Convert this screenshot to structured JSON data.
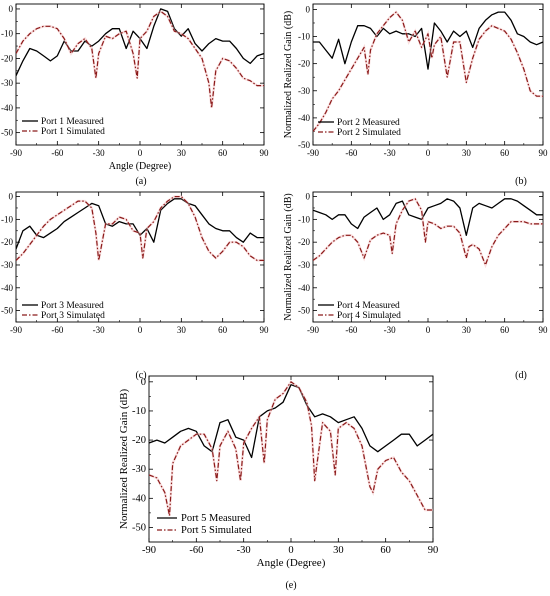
{
  "chart_data": [
    {
      "type": "line",
      "panel_label": "(a)",
      "xlabel": "Angle (Degree)",
      "ylabel": "Normalized Realized Gain (dB)",
      "xlim": [
        -90,
        90
      ],
      "ylim": [
        -55,
        2
      ],
      "xticks": [
        "-90",
        "-60",
        "-30",
        "0",
        "30",
        "60",
        "90"
      ],
      "yticks": [
        "0",
        "-10",
        "-20",
        "-30",
        "-40",
        "-50"
      ],
      "legend_position": "bottom-left",
      "series": [
        {
          "name": "Port 1 Measured",
          "color": "#000000",
          "style": "solid",
          "x": [
            -90,
            -85,
            -80,
            -75,
            -70,
            -65,
            -60,
            -55,
            -50,
            -45,
            -40,
            -35,
            -30,
            -25,
            -20,
            -15,
            -10,
            -5,
            0,
            5,
            10,
            15,
            20,
            25,
            30,
            35,
            40,
            45,
            50,
            55,
            60,
            65,
            70,
            75,
            80,
            85,
            90
          ],
          "y": [
            -27,
            -21,
            -16,
            -17,
            -19,
            -21,
            -19,
            -13,
            -17,
            -17,
            -13,
            -15,
            -13,
            -10,
            -8,
            -8,
            -16,
            -9,
            -12,
            -16,
            -7,
            0,
            -1,
            -8,
            -11,
            -8,
            -14,
            -17,
            -14,
            -12,
            -13,
            -13,
            -16,
            -20,
            -22,
            -19,
            -18
          ]
        },
        {
          "name": "Port 1 Simulated",
          "color": "#8b1a1a",
          "style": "dashdot",
          "x": [
            -90,
            -85,
            -80,
            -75,
            -70,
            -65,
            -60,
            -55,
            -50,
            -45,
            -40,
            -35,
            -32,
            -30,
            -25,
            -20,
            -15,
            -10,
            -5,
            -2,
            0,
            5,
            10,
            15,
            20,
            25,
            30,
            35,
            40,
            45,
            50,
            52,
            55,
            60,
            65,
            70,
            75,
            80,
            85,
            90
          ],
          "y": [
            -18,
            -13,
            -10,
            -8,
            -7,
            -7,
            -8,
            -12,
            -18,
            -14,
            -12,
            -16,
            -28,
            -18,
            -11,
            -12,
            -10,
            -9,
            -18,
            -28,
            -12,
            -9,
            -3,
            -1,
            -3,
            -9,
            -10,
            -12,
            -16,
            -20,
            -30,
            -40,
            -25,
            -20,
            -21,
            -24,
            -28,
            -29,
            -31,
            -31
          ]
        }
      ]
    },
    {
      "type": "line",
      "panel_label": "(b)",
      "xlabel": "",
      "ylabel": "Normalized Realized Gain (dB)",
      "xlim": [
        -90,
        90
      ],
      "ylim": [
        -50,
        2
      ],
      "xticks": [
        "-90",
        "-60",
        "-30",
        "0",
        "30",
        "60",
        "90"
      ],
      "yticks": [
        "0",
        "-10",
        "-20",
        "-30",
        "-40",
        "-50"
      ],
      "legend_position": "bottom-left",
      "series": [
        {
          "name": "Port 2 Measured",
          "color": "#000000",
          "style": "solid",
          "x": [
            -90,
            -85,
            -80,
            -75,
            -70,
            -65,
            -60,
            -55,
            -50,
            -45,
            -40,
            -35,
            -30,
            -25,
            -20,
            -15,
            -10,
            -5,
            0,
            5,
            10,
            15,
            20,
            25,
            30,
            35,
            40,
            45,
            50,
            55,
            60,
            65,
            70,
            75,
            80,
            85,
            90
          ],
          "y": [
            -12,
            -12,
            -15,
            -18,
            -11,
            -20,
            -12,
            -6,
            -6,
            -7,
            -10,
            -7,
            -9,
            -8,
            -9,
            -9,
            -10,
            -7,
            -22,
            -5,
            -8,
            -12,
            -8,
            -10,
            -8,
            -14,
            -7,
            -4,
            -2,
            -1,
            -1,
            -4,
            -9,
            -10,
            -12,
            -13,
            -12
          ]
        },
        {
          "name": "Port 2 Simulated",
          "color": "#8b1a1a",
          "style": "dashdot",
          "x": [
            -90,
            -85,
            -80,
            -75,
            -70,
            -65,
            -60,
            -55,
            -50,
            -47,
            -45,
            -40,
            -35,
            -30,
            -25,
            -20,
            -15,
            -10,
            -5,
            0,
            3,
            5,
            10,
            15,
            20,
            25,
            30,
            35,
            40,
            45,
            50,
            55,
            60,
            65,
            70,
            75,
            80,
            85,
            90
          ],
          "y": [
            -45,
            -42,
            -38,
            -33,
            -30,
            -26,
            -22,
            -18,
            -14,
            -24,
            -15,
            -9,
            -6,
            -3,
            -1,
            -4,
            -12,
            -8,
            -14,
            -9,
            -18,
            -13,
            -10,
            -25,
            -12,
            -12,
            -27,
            -18,
            -11,
            -8,
            -6,
            -7,
            -8,
            -11,
            -16,
            -22,
            -30,
            -32,
            -32
          ]
        }
      ]
    },
    {
      "type": "line",
      "panel_label": "(c)",
      "xlabel": "",
      "ylabel": "Normalized Realized Gain (dB)",
      "xlim": [
        -90,
        90
      ],
      "ylim": [
        -55,
        2
      ],
      "xticks": [
        "-90",
        "-60",
        "-30",
        "0",
        "30",
        "60",
        "90"
      ],
      "yticks": [
        "0",
        "-10",
        "-20",
        "-30",
        "-40",
        "-50"
      ],
      "legend_position": "bottom-left",
      "series": [
        {
          "name": "Port 3 Measured",
          "color": "#000000",
          "style": "solid",
          "x": [
            -90,
            -85,
            -80,
            -75,
            -70,
            -65,
            -60,
            -55,
            -50,
            -45,
            -40,
            -35,
            -30,
            -25,
            -20,
            -15,
            -10,
            -5,
            0,
            5,
            10,
            15,
            20,
            25,
            30,
            35,
            40,
            45,
            50,
            55,
            60,
            65,
            70,
            75,
            80,
            85,
            90
          ],
          "y": [
            -23,
            -15,
            -13,
            -17,
            -18,
            -16,
            -14,
            -11,
            -9,
            -7,
            -5,
            -3,
            -4,
            -12,
            -13,
            -11,
            -12,
            -12,
            -17,
            -14,
            -20,
            -6,
            -3,
            -1,
            -1,
            -3,
            -4,
            -8,
            -12,
            -14,
            -15,
            -15,
            -18,
            -20,
            -16,
            -18,
            -18
          ]
        },
        {
          "name": "Port 3 Simulated",
          "color": "#8b1a1a",
          "style": "dashdot",
          "x": [
            -90,
            -85,
            -80,
            -75,
            -70,
            -65,
            -60,
            -55,
            -50,
            -45,
            -40,
            -35,
            -32,
            -30,
            -25,
            -20,
            -15,
            -10,
            -5,
            0,
            2,
            5,
            10,
            15,
            20,
            25,
            30,
            35,
            40,
            45,
            50,
            55,
            60,
            65,
            70,
            75,
            80,
            85,
            90
          ],
          "y": [
            -28,
            -25,
            -21,
            -17,
            -13,
            -10,
            -8,
            -6,
            -4,
            -2,
            -2,
            -5,
            -16,
            -28,
            -12,
            -12,
            -9,
            -10,
            -15,
            -16,
            -27,
            -14,
            -11,
            -5,
            -2,
            0,
            0,
            -3,
            -9,
            -18,
            -24,
            -27,
            -24,
            -20,
            -20,
            -22,
            -26,
            -28,
            -28
          ]
        }
      ]
    },
    {
      "type": "line",
      "panel_label": "(d)",
      "xlabel": "",
      "ylabel": "Normalized Realized Gain (dB)",
      "xlim": [
        -90,
        90
      ],
      "ylim": [
        -55,
        2
      ],
      "xticks": [
        "-90",
        "-60",
        "-30",
        "0",
        "30",
        "60",
        "90"
      ],
      "yticks": [
        "0",
        "-10",
        "-20",
        "-30",
        "-40",
        "-50"
      ],
      "legend_position": "bottom-left",
      "series": [
        {
          "name": "Port 4 Measured",
          "color": "#000000",
          "style": "solid",
          "x": [
            -90,
            -85,
            -80,
            -75,
            -70,
            -65,
            -60,
            -55,
            -50,
            -45,
            -40,
            -35,
            -30,
            -25,
            -20,
            -15,
            -10,
            -5,
            0,
            5,
            10,
            15,
            20,
            25,
            30,
            35,
            40,
            45,
            50,
            55,
            60,
            65,
            70,
            75,
            80,
            85,
            90
          ],
          "y": [
            -6,
            -7,
            -8,
            -10,
            -8,
            -8,
            -12,
            -14,
            -9,
            -7,
            -5,
            -10,
            -8,
            -3,
            -2,
            -8,
            -9,
            -10,
            -5,
            -4,
            -3,
            -1,
            -2,
            -5,
            -17,
            -5,
            -3,
            -4,
            -5,
            -3,
            -1,
            -1,
            -2,
            -4,
            -6,
            -8,
            -8
          ]
        },
        {
          "name": "Port 4 Simulated",
          "color": "#8b1a1a",
          "style": "dashdot",
          "x": [
            -90,
            -85,
            -80,
            -75,
            -70,
            -65,
            -60,
            -55,
            -50,
            -45,
            -40,
            -35,
            -30,
            -28,
            -25,
            -20,
            -15,
            -10,
            -5,
            -2,
            0,
            5,
            10,
            15,
            20,
            25,
            30,
            32,
            35,
            40,
            45,
            50,
            55,
            60,
            65,
            70,
            75,
            80,
            85,
            90
          ],
          "y": [
            -28,
            -26,
            -23,
            -20,
            -18,
            -17,
            -17,
            -20,
            -27,
            -19,
            -17,
            -16,
            -17,
            -25,
            -12,
            -6,
            -2,
            -1,
            -6,
            -20,
            -11,
            -12,
            -14,
            -13,
            -13,
            -16,
            -27,
            -22,
            -21,
            -23,
            -30,
            -22,
            -17,
            -14,
            -11,
            -11,
            -11,
            -12,
            -12,
            -12
          ]
        }
      ]
    },
    {
      "type": "line",
      "panel_label": "(e)",
      "xlabel": "Angle (Degree)",
      "ylabel": "Normalized Realized Gain (dB)",
      "xlim": [
        -90,
        90
      ],
      "ylim": [
        -55,
        2
      ],
      "xticks": [
        "-90",
        "-60",
        "-30",
        "0",
        "30",
        "60",
        "90"
      ],
      "yticks": [
        "0",
        "-10",
        "-20",
        "-30",
        "-40",
        "-50"
      ],
      "legend_position": "bottom-left",
      "series": [
        {
          "name": "Port 5 Measured",
          "color": "#000000",
          "style": "solid",
          "x": [
            -90,
            -85,
            -80,
            -75,
            -70,
            -65,
            -60,
            -55,
            -50,
            -45,
            -40,
            -35,
            -30,
            -25,
            -20,
            -15,
            -10,
            -5,
            0,
            5,
            10,
            15,
            20,
            25,
            30,
            35,
            40,
            45,
            50,
            55,
            60,
            65,
            70,
            75,
            80,
            85,
            90
          ],
          "y": [
            -21,
            -20,
            -21,
            -19,
            -17,
            -16,
            -17,
            -22,
            -24,
            -14,
            -13,
            -19,
            -20,
            -26,
            -12,
            -10,
            -9,
            -7,
            -1,
            -2,
            -8,
            -12,
            -11,
            -12,
            -14,
            -13,
            -12,
            -16,
            -22,
            -24,
            -22,
            -20,
            -18,
            -18,
            -22,
            -20,
            -18
          ]
        },
        {
          "name": "Port 5 Simulated",
          "color": "#8b1a1a",
          "style": "dashdot",
          "x": [
            -90,
            -85,
            -80,
            -77,
            -75,
            -70,
            -65,
            -60,
            -55,
            -50,
            -47,
            -45,
            -40,
            -35,
            -32,
            -30,
            -25,
            -20,
            -17,
            -15,
            -10,
            -5,
            0,
            5,
            10,
            13,
            15,
            20,
            25,
            28,
            30,
            35,
            40,
            45,
            50,
            52,
            55,
            60,
            65,
            70,
            75,
            80,
            85,
            90
          ],
          "y": [
            -32,
            -33,
            -38,
            -46,
            -28,
            -22,
            -20,
            -18,
            -18,
            -23,
            -34,
            -22,
            -17,
            -23,
            -34,
            -21,
            -16,
            -12,
            -28,
            -13,
            -6,
            -4,
            0,
            -2,
            -7,
            -15,
            -34,
            -14,
            -17,
            -32,
            -16,
            -14,
            -16,
            -22,
            -36,
            -38,
            -30,
            -27,
            -26,
            -31,
            -34,
            -39,
            -44,
            -44
          ]
        }
      ]
    }
  ]
}
